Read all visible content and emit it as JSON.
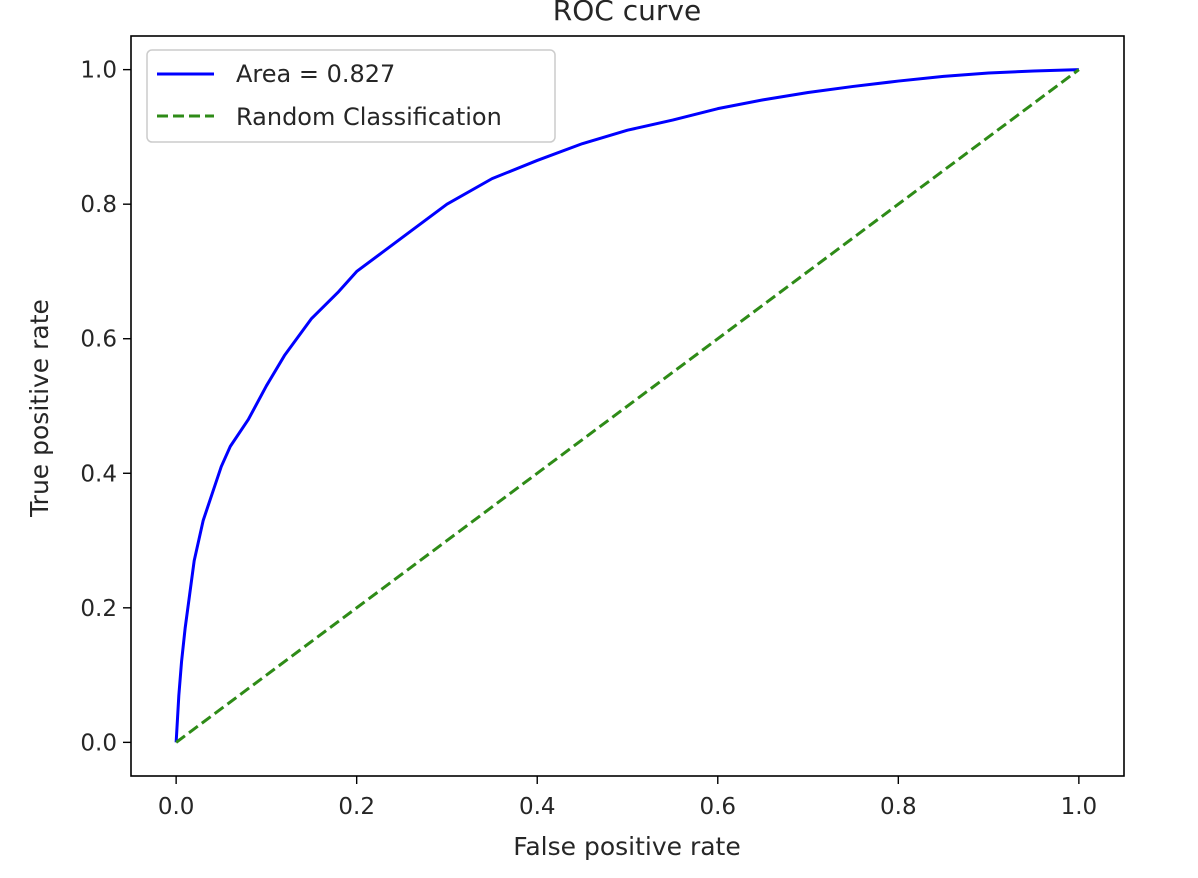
{
  "chart_data": {
    "type": "line",
    "title": "ROC curve",
    "xlabel": "False positive rate",
    "ylabel": "True positive rate",
    "xlim": [
      -0.05,
      1.05
    ],
    "ylim": [
      -0.05,
      1.05
    ],
    "xticks": [
      0.0,
      0.2,
      0.4,
      0.6,
      0.8,
      1.0
    ],
    "yticks": [
      0.0,
      0.2,
      0.4,
      0.6,
      0.8,
      1.0
    ],
    "xtick_labels": [
      "0.0",
      "0.2",
      "0.4",
      "0.6",
      "0.8",
      "1.0"
    ],
    "ytick_labels": [
      "0.0",
      "0.2",
      "0.4",
      "0.6",
      "0.8",
      "1.0"
    ],
    "grid": false,
    "legend_position": "top-left",
    "series": [
      {
        "name": "Area = 0.827",
        "style": "solid",
        "color": "#0000ff",
        "x": [
          0.0,
          0.003,
          0.006,
          0.01,
          0.015,
          0.02,
          0.03,
          0.04,
          0.05,
          0.06,
          0.08,
          0.1,
          0.12,
          0.15,
          0.18,
          0.2,
          0.25,
          0.3,
          0.35,
          0.4,
          0.45,
          0.5,
          0.55,
          0.6,
          0.65,
          0.7,
          0.75,
          0.8,
          0.85,
          0.9,
          0.95,
          1.0
        ],
        "y": [
          0.0,
          0.07,
          0.12,
          0.17,
          0.22,
          0.27,
          0.33,
          0.37,
          0.41,
          0.44,
          0.48,
          0.53,
          0.575,
          0.63,
          0.67,
          0.7,
          0.75,
          0.8,
          0.838,
          0.865,
          0.89,
          0.91,
          0.925,
          0.942,
          0.955,
          0.966,
          0.975,
          0.983,
          0.99,
          0.995,
          0.998,
          1.0
        ]
      },
      {
        "name": "Random Classification",
        "style": "dashed",
        "color": "#2e8b17",
        "x": [
          0.0,
          1.0
        ],
        "y": [
          0.0,
          1.0
        ]
      }
    ]
  }
}
